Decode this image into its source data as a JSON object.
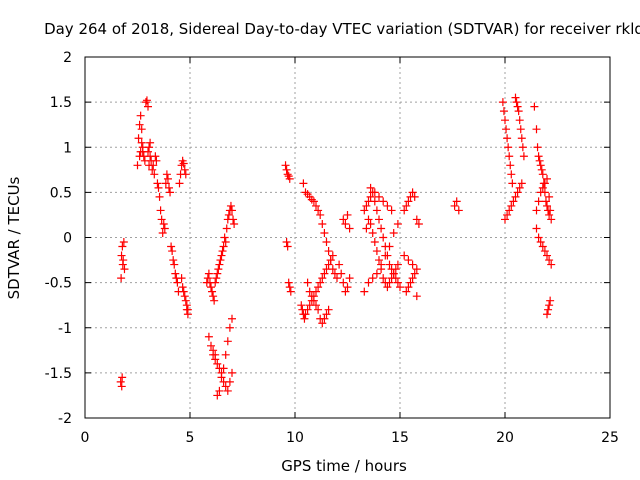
{
  "chart_data": {
    "type": "scatter",
    "title": "Day 264 of 2018, Sidereal Day-to-day VTEC variation (SDTVAR) for receiver rkld",
    "xlabel": "GPS time / hours",
    "ylabel": "SDTVAR / TECUs",
    "xlim": [
      0,
      25
    ],
    "ylim": [
      -2,
      2
    ],
    "x_ticks": [
      0,
      5,
      10,
      15,
      20,
      25
    ],
    "x_tick_labels": [
      "0",
      "5",
      "10",
      "15",
      "20",
      "25"
    ],
    "y_ticks": [
      -2,
      -1.5,
      -1,
      -0.5,
      0,
      0.5,
      1,
      1.5,
      2
    ],
    "y_tick_labels": [
      "-2",
      "-1.5",
      "-1",
      "-0.5",
      "0",
      "0.5",
      "1",
      "1.5",
      "2"
    ],
    "grid": true,
    "marker": "plus",
    "color": "#ff0000",
    "series": [
      {
        "name": "SDTVAR",
        "x": [
          1.75,
          1.77,
          1.8,
          1.82,
          1.85,
          1.88,
          1.7,
          1.72,
          1.74,
          1.78,
          2.5,
          2.55,
          2.6,
          2.65,
          2.7,
          2.75,
          2.8,
          2.85,
          2.9,
          2.95,
          3.0,
          3.05,
          3.1,
          3.15,
          3.2,
          3.25,
          3.3,
          3.35,
          3.4,
          3.45,
          3.5,
          3.55,
          3.6,
          3.65,
          3.7,
          3.75,
          3.8,
          3.85,
          3.9,
          3.95,
          4.0,
          4.05,
          4.1,
          4.15,
          4.2,
          4.25,
          4.3,
          4.35,
          4.4,
          4.45,
          4.5,
          4.55,
          4.6,
          4.65,
          4.7,
          4.75,
          4.8,
          4.85,
          4.9,
          2.6,
          2.65,
          2.7,
          2.75,
          3.0,
          3.05,
          3.1,
          4.6,
          4.65,
          4.7,
          4.75,
          4.8,
          4.85,
          4.9,
          5.8,
          5.85,
          5.9,
          5.95,
          6.0,
          6.05,
          6.1,
          6.15,
          6.2,
          6.25,
          6.3,
          6.35,
          6.4,
          6.45,
          6.5,
          6.55,
          6.6,
          6.65,
          6.7,
          6.75,
          6.8,
          6.85,
          6.9,
          6.95,
          7.0,
          7.05,
          7.1,
          5.9,
          6.0,
          6.1,
          6.2,
          6.3,
          6.4,
          6.5,
          6.6,
          6.7,
          6.8,
          6.9,
          7.0,
          6.1,
          6.2,
          6.3,
          6.4,
          6.5,
          6.6,
          6.7,
          6.8,
          6.9,
          7.0,
          9.55,
          9.6,
          9.65,
          9.7,
          9.75,
          9.6,
          9.65,
          9.7,
          9.75,
          9.8,
          10.4,
          10.5,
          10.6,
          10.7,
          10.8,
          10.9,
          11.0,
          11.1,
          11.2,
          11.3,
          11.4,
          11.5,
          11.6,
          11.7,
          11.8,
          11.9,
          12.0,
          10.5,
          10.6,
          10.7,
          10.8,
          10.9,
          11.0,
          11.1,
          11.2,
          11.3,
          11.4,
          11.5,
          11.6,
          11.7,
          11.8,
          10.3,
          10.35,
          10.4,
          10.45,
          10.6,
          10.7,
          10.8,
          10.9,
          11.0,
          11.1,
          11.2,
          11.3,
          11.4,
          11.5,
          11.6,
          12.1,
          12.2,
          12.3,
          12.4,
          12.5,
          12.6,
          12.3,
          12.4,
          12.5,
          12.6,
          13.3,
          13.4,
          13.5,
          13.6,
          13.7,
          13.8,
          13.9,
          14.0,
          14.1,
          14.2,
          14.3,
          14.4,
          14.5,
          14.6,
          14.7,
          14.8,
          14.9,
          15.0,
          13.4,
          13.5,
          13.6,
          13.7,
          13.8,
          13.9,
          14.0,
          14.1,
          14.2,
          14.3,
          14.4,
          14.5,
          14.6,
          14.7,
          14.8,
          14.9,
          13.3,
          13.5,
          13.7,
          13.9,
          14.1,
          14.3,
          14.5,
          14.7,
          14.9,
          13.6,
          13.8,
          14.0,
          14.2,
          14.4,
          14.6,
          15.2,
          15.3,
          15.4,
          15.5,
          15.6,
          15.7,
          15.8,
          15.9,
          15.3,
          15.4,
          15.5,
          15.6,
          15.7,
          15.8,
          15.2,
          15.4,
          15.6,
          15.8,
          17.6,
          17.7,
          17.8,
          19.9,
          19.95,
          20.0,
          20.05,
          20.1,
          20.15,
          20.2,
          20.25,
          20.3,
          20.35,
          20.5,
          20.55,
          20.6,
          20.65,
          20.7,
          20.75,
          20.8,
          20.85,
          20.9,
          20.0,
          20.1,
          20.2,
          20.3,
          20.4,
          20.5,
          20.6,
          20.7,
          20.8,
          21.4,
          21.5,
          21.55,
          21.6,
          21.65,
          21.7,
          21.75,
          21.8,
          21.85,
          21.9,
          21.95,
          22.0,
          22.05,
          22.1,
          22.15,
          22.2,
          21.5,
          21.6,
          21.7,
          21.8,
          21.9,
          22.0,
          22.1,
          22.2,
          21.5,
          21.6,
          21.7,
          21.8,
          21.9,
          22.0,
          22.1,
          22.0,
          22.05,
          22.1,
          22.15
        ],
        "y": [
          -1.65,
          -1.55,
          -0.3,
          -0.25,
          -0.05,
          -0.35,
          -1.6,
          -0.45,
          -0.2,
          -0.1,
          0.8,
          1.1,
          1.25,
          1.35,
          1.2,
          0.95,
          0.9,
          0.85,
          1.5,
          1.52,
          1.45,
          1.0,
          0.9,
          0.85,
          0.75,
          0.8,
          0.7,
          0.9,
          0.85,
          0.6,
          0.55,
          0.45,
          0.3,
          0.2,
          0.05,
          0.15,
          0.1,
          0.6,
          0.7,
          0.65,
          0.55,
          0.5,
          -0.1,
          -0.15,
          -0.25,
          -0.3,
          -0.4,
          -0.45,
          -0.5,
          -0.6,
          0.6,
          0.7,
          0.8,
          0.85,
          0.82,
          0.75,
          0.7,
          -0.8,
          -0.85,
          0.9,
          0.95,
          1.05,
          1.0,
          0.95,
          0.8,
          1.05,
          -0.45,
          -0.55,
          -0.6,
          -0.65,
          -0.7,
          -0.75,
          -0.8,
          -0.5,
          -0.45,
          -0.4,
          -0.5,
          -0.55,
          -0.6,
          -0.65,
          -0.7,
          -0.5,
          -0.45,
          -0.4,
          -0.35,
          -0.3,
          -0.25,
          -0.2,
          -0.15,
          -0.1,
          0.0,
          -0.05,
          0.1,
          0.2,
          0.25,
          0.3,
          0.35,
          0.3,
          0.2,
          0.15,
          -1.1,
          -1.2,
          -1.3,
          -1.35,
          -1.4,
          -1.45,
          -1.5,
          -1.6,
          -1.65,
          -1.7,
          -1.6,
          -1.5,
          -1.25,
          -1.3,
          -1.75,
          -1.7,
          -1.55,
          -1.45,
          -1.3,
          -1.15,
          -1.0,
          -0.9,
          0.8,
          0.75,
          0.7,
          0.68,
          0.65,
          -0.05,
          -0.1,
          -0.5,
          -0.55,
          -0.6,
          0.6,
          0.5,
          0.48,
          0.45,
          0.42,
          0.4,
          0.35,
          0.3,
          0.25,
          0.15,
          0.05,
          -0.05,
          -0.15,
          -0.25,
          -0.35,
          -0.4,
          -0.45,
          -0.85,
          -0.8,
          -0.75,
          -0.7,
          -0.65,
          -0.6,
          -0.55,
          -0.5,
          -0.45,
          -0.4,
          -0.35,
          -0.3,
          -0.25,
          -0.2,
          -0.75,
          -0.8,
          -0.85,
          -0.9,
          -0.5,
          -0.6,
          -0.65,
          -0.7,
          -0.75,
          -0.8,
          -0.9,
          -0.95,
          -0.9,
          -0.85,
          -0.8,
          -0.3,
          -0.4,
          -0.5,
          -0.6,
          -0.55,
          -0.45,
          0.2,
          0.15,
          0.25,
          0.1,
          0.3,
          0.35,
          0.4,
          0.45,
          0.5,
          0.4,
          0.3,
          0.2,
          0.1,
          0.0,
          -0.1,
          -0.2,
          -0.3,
          -0.35,
          -0.4,
          -0.45,
          -0.5,
          -0.55,
          0.1,
          0.2,
          0.15,
          0.05,
          -0.05,
          -0.15,
          -0.25,
          -0.35,
          -0.45,
          -0.5,
          -0.55,
          -0.5,
          -0.45,
          -0.4,
          -0.35,
          -0.3,
          -0.6,
          -0.5,
          -0.45,
          -0.4,
          -0.3,
          -0.2,
          -0.1,
          0.05,
          0.15,
          0.55,
          0.5,
          0.45,
          0.4,
          0.35,
          0.3,
          0.3,
          0.35,
          0.4,
          0.45,
          0.5,
          0.45,
          0.2,
          0.15,
          -0.6,
          -0.55,
          -0.5,
          -0.45,
          -0.4,
          -0.35,
          -0.2,
          -0.25,
          -0.3,
          -0.65,
          0.35,
          0.4,
          0.3,
          1.5,
          1.4,
          1.3,
          1.2,
          1.1,
          1.0,
          0.9,
          0.8,
          0.7,
          0.6,
          1.55,
          1.5,
          1.45,
          1.4,
          1.3,
          1.2,
          1.1,
          1.0,
          0.9,
          0.2,
          0.25,
          0.3,
          0.35,
          0.4,
          0.45,
          0.5,
          0.55,
          0.6,
          1.45,
          1.2,
          1.0,
          0.9,
          0.85,
          0.8,
          0.75,
          0.7,
          0.6,
          0.5,
          0.4,
          0.35,
          0.3,
          0.25,
          0.3,
          0.2,
          0.1,
          0.0,
          -0.05,
          -0.1,
          -0.15,
          -0.2,
          -0.25,
          -0.3,
          0.3,
          0.4,
          0.5,
          0.55,
          0.6,
          0.65,
          0.45,
          -0.85,
          -0.8,
          -0.75,
          -0.7
        ]
      }
    ]
  }
}
